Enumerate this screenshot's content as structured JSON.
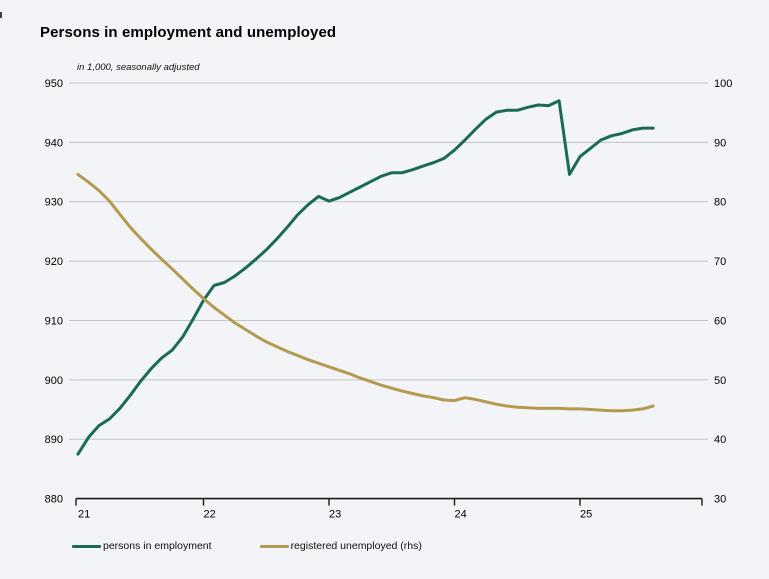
{
  "page": {
    "title": "Persons in employment and unemployed",
    "subtitle": "in 1,000, seasonally adjusted"
  },
  "colors": {
    "background": "#f3f4f7",
    "employment_line": "#1a6b55",
    "unemployed_line": "#b49a4e",
    "gridline": "#c3c4c7",
    "axis": "#1a1a1a",
    "text": "#000000"
  },
  "legend": {
    "items": [
      {
        "label": "persons in employment",
        "color": "#1a6b55"
      },
      {
        "label": "registered unemployed (rhs)",
        "color": "#b49a4e"
      }
    ]
  },
  "chart_data": {
    "type": "line",
    "title": "Persons in employment and unemployed",
    "subtitle": "in 1,000, seasonally adjusted",
    "grid": "horizontal-only",
    "legend_position": "bottom-left",
    "x_frequency": "monthly",
    "x_start": "2021-01",
    "x_end": "2025-08",
    "x_tick_labels": [
      "21",
      "22",
      "23",
      "24",
      "25"
    ],
    "left_axis": {
      "label": "in 1,000",
      "min": 880,
      "max": 950,
      "ticks": [
        880,
        890,
        900,
        910,
        920,
        930,
        940,
        950
      ]
    },
    "right_axis": {
      "min": 30,
      "max": 100,
      "ticks": [
        30,
        40,
        50,
        60,
        70,
        80,
        90,
        100
      ]
    },
    "series": [
      {
        "name": "persons in employment",
        "axis": "left",
        "color": "#1a6b55",
        "values": [
          887.5,
          890.3,
          892.3,
          893.4,
          895.2,
          897.4,
          899.8,
          901.9,
          903.7,
          905.0,
          907.2,
          910.2,
          913.4,
          915.9,
          916.4,
          917.5,
          918.8,
          920.3,
          921.9,
          923.7,
          925.7,
          927.8,
          929.5,
          930.9,
          930.1,
          930.7,
          931.6,
          932.5,
          933.4,
          934.3,
          934.9,
          934.9,
          935.4,
          936.0,
          936.6,
          937.3,
          938.7,
          940.4,
          942.2,
          943.9,
          945.1,
          945.4,
          945.4,
          945.9,
          946.3,
          946.2,
          947.0,
          934.6,
          937.6,
          939.0,
          940.4,
          941.1,
          941.5,
          942.1,
          942.4,
          942.4
        ]
      },
      {
        "name": "registered unemployed (rhs)",
        "axis": "right",
        "color": "#b49a4e",
        "values": [
          84.6,
          83.3,
          81.9,
          80.1,
          77.9,
          75.7,
          73.8,
          72.0,
          70.3,
          68.7,
          67.0,
          65.3,
          63.7,
          62.2,
          60.9,
          59.6,
          58.5,
          57.4,
          56.4,
          55.6,
          54.8,
          54.1,
          53.4,
          52.8,
          52.2,
          51.6,
          51.0,
          50.3,
          49.7,
          49.1,
          48.6,
          48.1,
          47.7,
          47.3,
          47.0,
          46.6,
          46.5,
          47.0,
          46.7,
          46.3,
          45.9,
          45.6,
          45.4,
          45.3,
          45.2,
          45.2,
          45.2,
          45.1,
          45.1,
          45.0,
          44.9,
          44.8,
          44.8,
          44.9,
          45.1,
          45.6
        ]
      }
    ]
  }
}
